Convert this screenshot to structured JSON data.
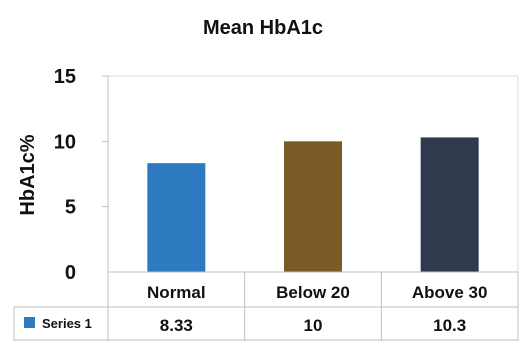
{
  "chart_data": {
    "type": "bar",
    "title": "Mean HbA1c",
    "xlabel": "",
    "ylabel": "HbA1c%",
    "categories": [
      "Normal",
      "Below 20",
      "Above 30"
    ],
    "series": [
      {
        "name": "Series 1",
        "values": [
          8.33,
          10,
          10.3
        ],
        "value_labels": [
          "8.33",
          "10",
          "10.3"
        ]
      }
    ],
    "bar_colors": [
      "#2e7ac1",
      "#7a5a25",
      "#2f3a4f"
    ],
    "legend_color": "#2e7ac1",
    "ylim": [
      0,
      15
    ],
    "yticks": [
      0,
      5,
      10,
      15
    ],
    "ytick_labels": [
      "0",
      "5",
      "10",
      "15"
    ],
    "grid": false,
    "legend": "data-table-left"
  }
}
